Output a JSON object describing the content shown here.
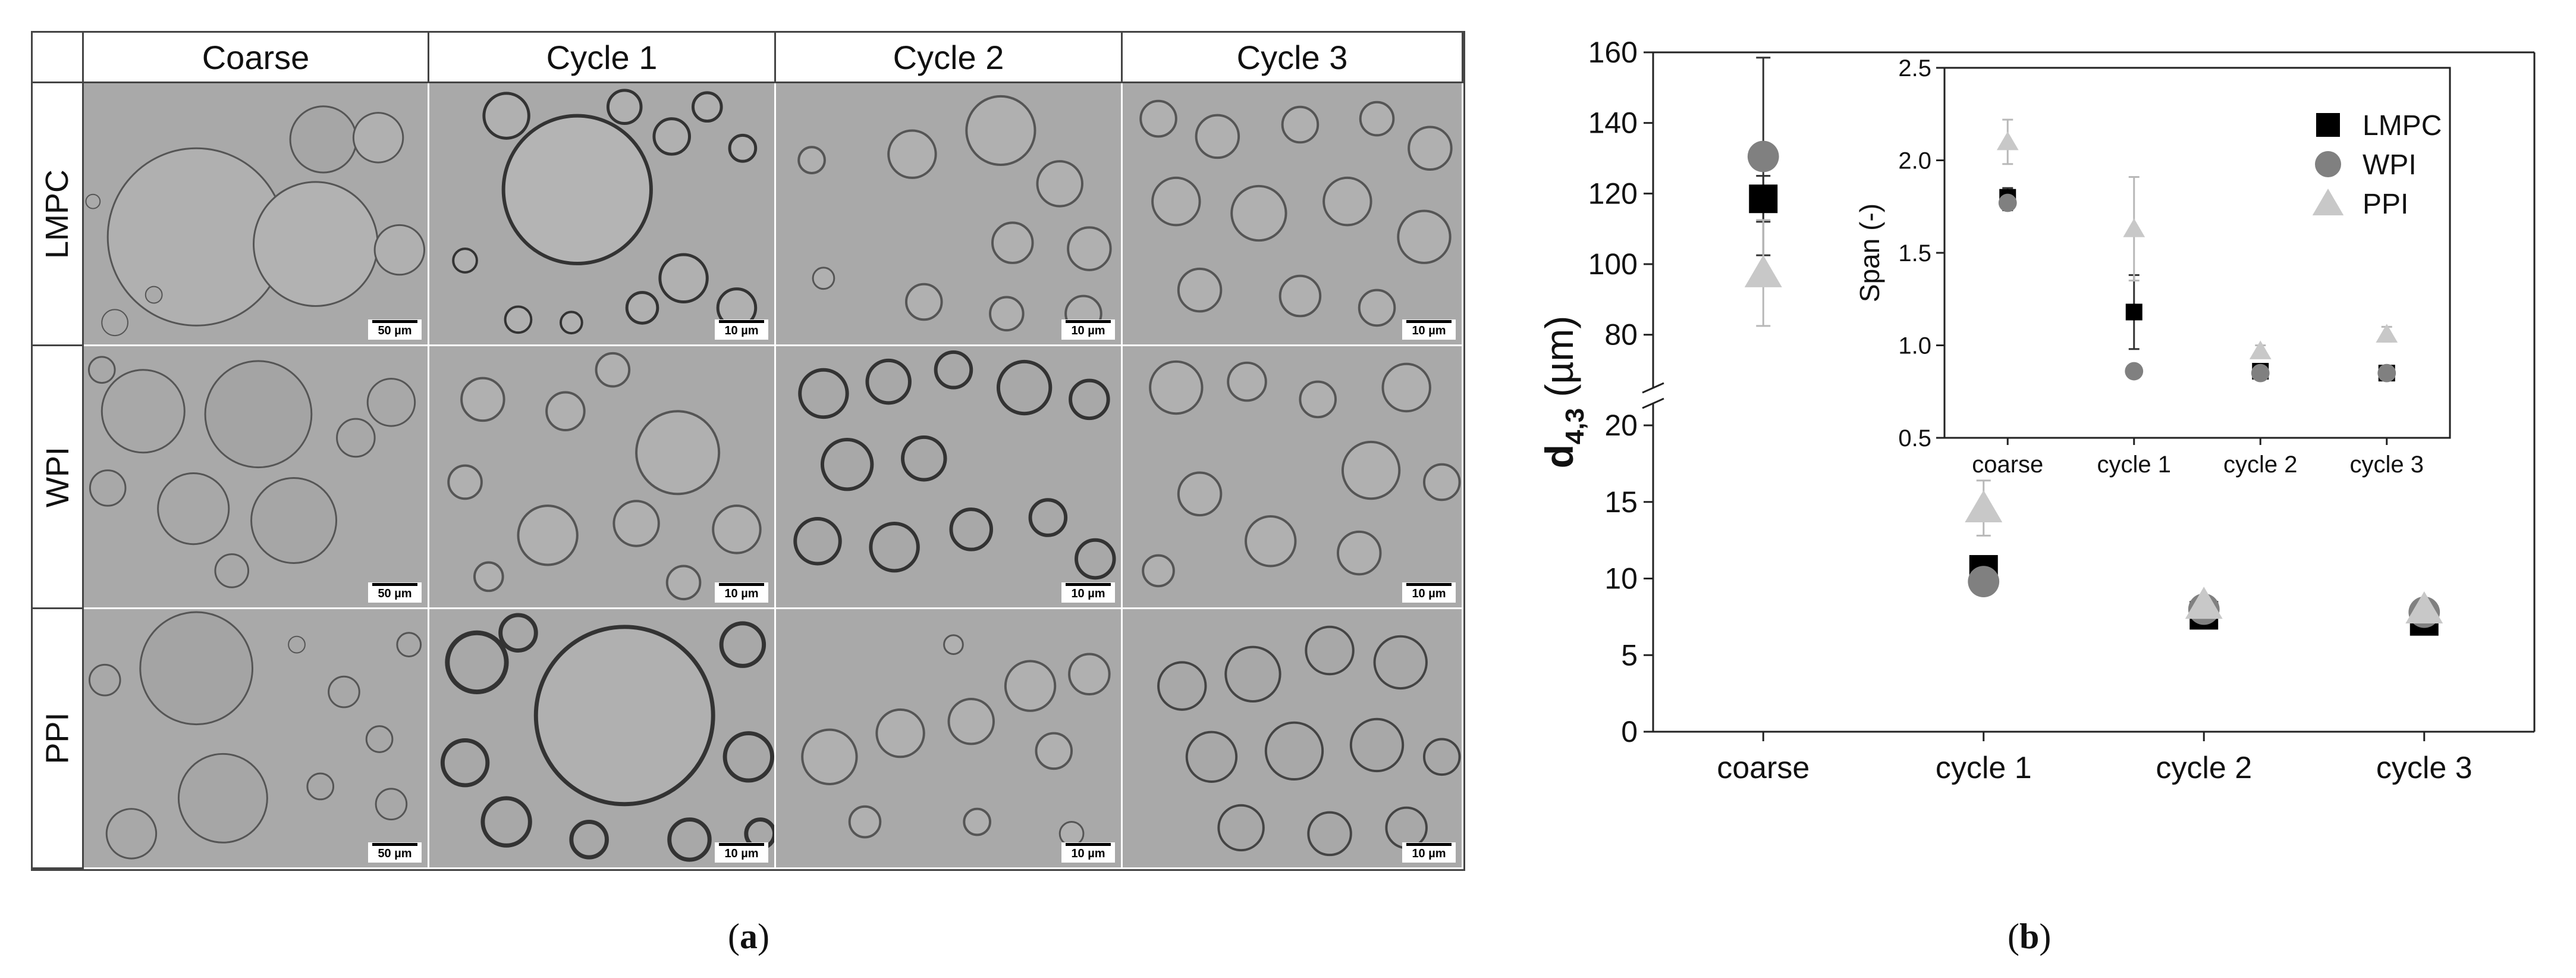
{
  "panel_a": {
    "label_open": "(",
    "label_letter": "a",
    "label_close": ")",
    "columns": [
      "Coarse",
      "Cycle 1",
      "Cycle 2",
      "Cycle 3"
    ],
    "rows": [
      "LMPC",
      "WPI",
      "PPI"
    ],
    "scale_bars": [
      [
        "50 µm",
        "10 µm",
        "10 µm",
        "10 µm"
      ],
      [
        "50 µm",
        "10 µm",
        "10 µm",
        "10 µm"
      ],
      [
        "50 µm",
        "10 µm",
        "10 µm",
        "10 µm"
      ]
    ]
  },
  "panel_b": {
    "label_open": "(",
    "label_letter": "b",
    "label_close": ")"
  },
  "chart_data": [
    {
      "type": "scatter",
      "title": "",
      "ylabel_main": "d",
      "ylabel_sub": "4,3",
      "ylabel_unit": "(µm)",
      "xlabel": "",
      "categories": [
        "coarse",
        "cycle 1",
        "cycle 2",
        "cycle 3"
      ],
      "y_axis_broken": true,
      "ylim_lower": [
        0,
        20
      ],
      "ylim_upper": [
        70,
        160
      ],
      "yticks_lower": [
        0,
        5,
        10,
        15,
        20
      ],
      "yticks_upper": [
        80,
        100,
        120,
        140,
        160
      ],
      "series": [
        {
          "name": "LMPC",
          "marker": "square",
          "color": "#000000",
          "values": [
            118.5,
            10.6,
            7.6,
            7.2
          ],
          "errors": [
            6.5,
            0.6,
            0.3,
            0.3
          ]
        },
        {
          "name": "WPI",
          "marker": "circle",
          "color": "#808080",
          "values": [
            130.5,
            9.8,
            8.0,
            7.8
          ],
          "errors": [
            28,
            0.4,
            0.3,
            0.3
          ]
        },
        {
          "name": "PPI",
          "marker": "triangle",
          "color": "#c8c8c8",
          "values": [
            97.5,
            14.6,
            8.3,
            8.0
          ],
          "errors": [
            15,
            1.8,
            0.3,
            0.3
          ]
        }
      ]
    },
    {
      "type": "scatter",
      "title": "",
      "inset": true,
      "ylabel": "Span (-)",
      "xlabel": "",
      "categories": [
        "coarse",
        "cycle 1",
        "cycle 2",
        "cycle 3"
      ],
      "ylim": [
        0.5,
        2.5
      ],
      "yticks": [
        "0.5",
        "1.0",
        "1.5",
        "2.0",
        "2.5"
      ],
      "legend_position": "top-right",
      "series": [
        {
          "name": "LMPC",
          "marker": "square",
          "color": "#000000",
          "values": [
            1.8,
            1.18,
            0.86,
            0.85
          ],
          "errors": [
            0.05,
            0.2,
            0.02,
            0.02
          ]
        },
        {
          "name": "WPI",
          "marker": "circle",
          "color": "#808080",
          "values": [
            1.77,
            0.86,
            0.85,
            0.85
          ],
          "errors": [
            0.04,
            0.02,
            0.02,
            0.02
          ]
        },
        {
          "name": "PPI",
          "marker": "triangle",
          "color": "#c8c8c8",
          "values": [
            2.1,
            1.63,
            0.97,
            1.06
          ],
          "errors": [
            0.12,
            0.28,
            0.03,
            0.04
          ]
        }
      ]
    }
  ]
}
